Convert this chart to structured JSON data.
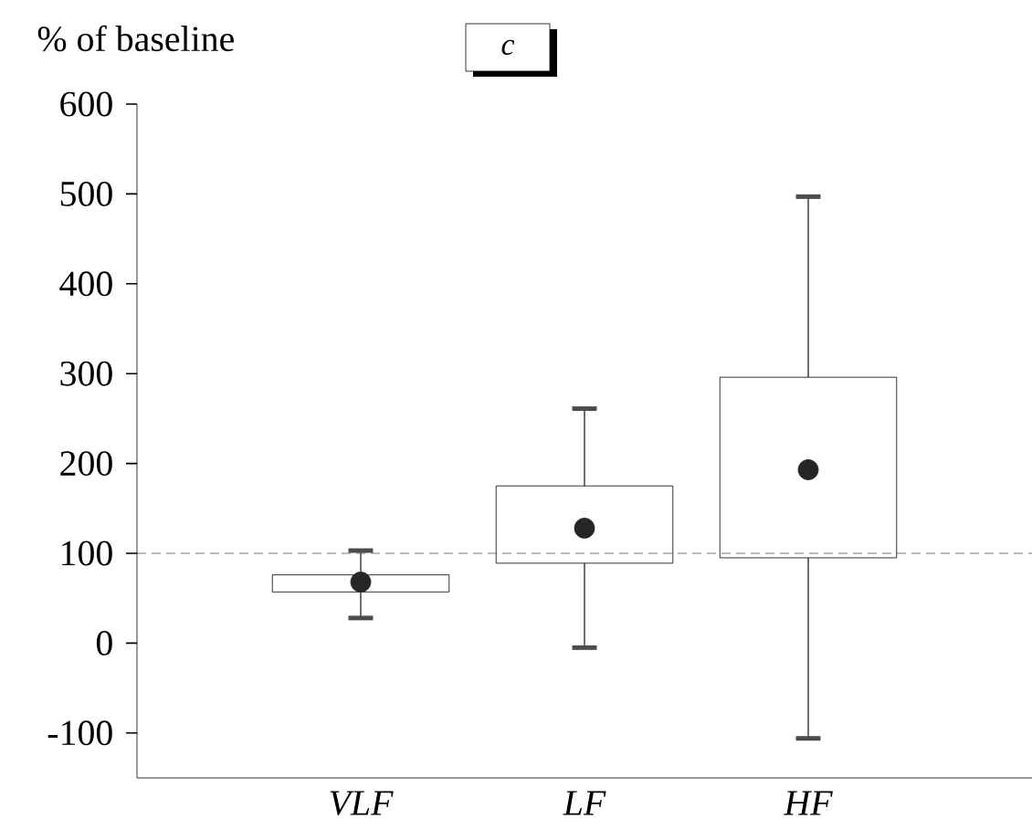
{
  "chart_data": {
    "type": "box",
    "ylabel": "% of baseline",
    "annotations": [
      "c"
    ],
    "categories": [
      "VLF",
      "LF",
      "HF"
    ],
    "boxes": [
      {
        "low": 28,
        "q1": 57,
        "median": 68,
        "q3": 76,
        "high": 103
      },
      {
        "low": -5,
        "q1": 89,
        "median": 128,
        "q3": 175,
        "high": 261
      },
      {
        "low": -106,
        "q1": 95,
        "median": 193,
        "q3": 296,
        "high": 497
      }
    ],
    "ylim": [
      -150,
      600
    ],
    "yticks": [
      -100,
      0,
      100,
      200,
      300,
      400,
      500,
      600
    ],
    "ref_lines": [
      {
        "axis": "y",
        "value": 100,
        "line_style": "dashed",
        "color": "#555555"
      }
    ]
  }
}
